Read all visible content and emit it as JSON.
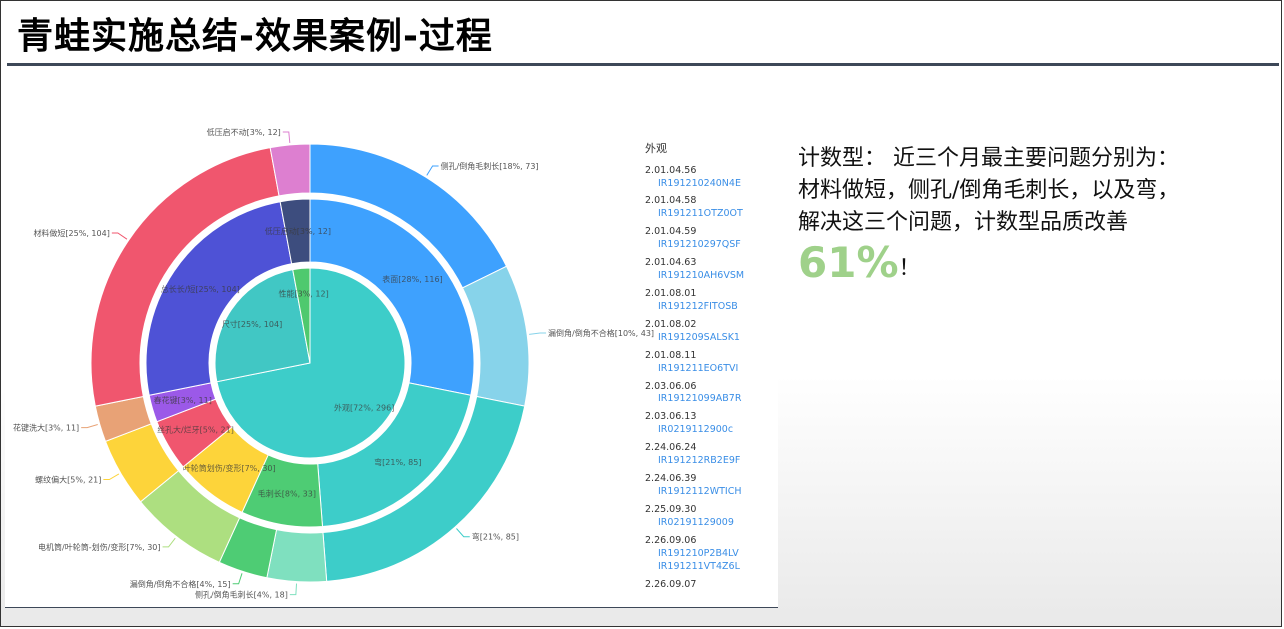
{
  "title": "青蛙实施总结-效果案例-过程",
  "description": {
    "line1": "计数型： 近三个月最主要问题分别为：",
    "line2": "材料做短，侧孔/倒角毛刺长，以及弯，",
    "line3": "解决这三个问题，计数型品质改善",
    "highlight": "61%",
    "suffix": "！"
  },
  "legend": {
    "heading": "外观",
    "items": [
      {
        "code": "2.01.04.56",
        "ids": [
          "IR191210240N4E"
        ]
      },
      {
        "code": "2.01.04.58",
        "ids": [
          "IR191211OTZ0OT"
        ]
      },
      {
        "code": "2.01.04.59",
        "ids": [
          "IR191210297QSF"
        ]
      },
      {
        "code": "2.01.04.63",
        "ids": [
          "IR191210AH6VSM"
        ]
      },
      {
        "code": "2.01.08.01",
        "ids": [
          "IR191212FITOSB"
        ]
      },
      {
        "code": "2.01.08.02",
        "ids": [
          "IR191209SALSK1"
        ]
      },
      {
        "code": "2.01.08.11",
        "ids": [
          "IR191211EO6TVI"
        ]
      },
      {
        "code": "2.03.06.06",
        "ids": [
          "IR19121099AB7R"
        ]
      },
      {
        "code": "2.03.06.13",
        "ids": [
          "IR0219112900c"
        ]
      },
      {
        "code": "2.24.06.24",
        "ids": [
          "IR191212RB2E9F"
        ]
      },
      {
        "code": "2.24.06.39",
        "ids": [
          "IR1912112WTICH"
        ]
      },
      {
        "code": "2.25.09.30",
        "ids": [
          "IR02191129009"
        ]
      },
      {
        "code": "2.26.09.06",
        "ids": [
          "IR191210P2B4LV",
          "IR191211VT4Z6L"
        ]
      },
      {
        "code": "2.26.09.07",
        "ids": []
      }
    ]
  },
  "chart_data": {
    "type": "sunburst",
    "title": "",
    "center": {
      "name": "",
      "value": 0
    },
    "inner_ring": [
      {
        "name": "外观",
        "label": "外观[72%, 296]",
        "value": 296,
        "color": "#3dcdc9"
      },
      {
        "name": "尺寸",
        "label": "尺寸[25%, 104]",
        "value": 104,
        "color": "#41c7c4"
      },
      {
        "name": "性能",
        "label": "性能[3%, 12]",
        "value": 12,
        "color": "#4fc96e"
      }
    ],
    "middle_ring": [
      {
        "name": "表面",
        "label": "表面[28%, 116]",
        "value": 116,
        "color": "#3ea1fe",
        "parent": "外观"
      },
      {
        "name": "弯",
        "label": "弯[21%, 85]",
        "value": 85,
        "color": "#3dcdc9",
        "parent": "外观"
      },
      {
        "name": "毛刺长",
        "label": "毛刺长[8%, 33]",
        "value": 33,
        "color": "#4ecc74",
        "parent": "外观"
      },
      {
        "name": "叶轮筒划伤/变形",
        "label": "叶轮筒划伤/变形[7%, 30]",
        "value": 30,
        "color": "#fdd43a",
        "parent": "外观"
      },
      {
        "name": "丝孔大/烂牙",
        "label": "丝孔大/烂牙[5%, 21]",
        "value": 21,
        "color": "#f0566e",
        "parent": "外观"
      },
      {
        "name": "春花键",
        "label": "春花键[3%, 11]",
        "value": 11,
        "color": "#9b59e8",
        "parent": "外观"
      },
      {
        "name": "总长长/短",
        "label": "总长长/短[25%, 104]",
        "value": 104,
        "color": "#4e52d6",
        "parent": "尺寸"
      },
      {
        "name": "低压启动",
        "label": "低压启动[3%, 12]",
        "value": 12,
        "color": "#3d4d7e",
        "parent": "性能"
      }
    ],
    "outer_ring": [
      {
        "name": "侧孔/倒角毛刺长",
        "label": "侧孔/倒角毛刺长[18%, 73]",
        "value": 73,
        "color": "#3ea1fe"
      },
      {
        "name": "漏倒角/倒角不合格",
        "label": "漏倒角/倒角不合格[10%, 43]",
        "value": 43,
        "color": "#87d3ea"
      },
      {
        "name": "弯",
        "label": "弯[21%, 85]",
        "value": 85,
        "color": "#3dcdc9"
      },
      {
        "name": "侧孔/倒角毛刺长",
        "label": "侧孔/倒角毛刺长[4%, 18]",
        "value": 18,
        "color": "#7fe0bf"
      },
      {
        "name": "漏倒角/倒角不合格",
        "label": "漏倒角/倒角不合格[4%, 15]",
        "value": 15,
        "color": "#4ecc74"
      },
      {
        "name": "电机筒/叶轮筒-划伤/变形",
        "label": "电机筒/叶轮筒-划伤/变形[7%, 30]",
        "value": 30,
        "color": "#addf80"
      },
      {
        "name": "螺纹偏大",
        "label": "螺纹偏大[5%, 21]",
        "value": 21,
        "color": "#fdd43a"
      },
      {
        "name": "花键洗大",
        "label": "花键洗大[3%, 11]",
        "value": 11,
        "color": "#e8a276"
      },
      {
        "name": "材料做短",
        "label": "材料做短[25%, 104]",
        "value": 104,
        "color": "#f0566e"
      },
      {
        "name": "低压启不动",
        "label": "低压启不动[3%, 12]",
        "value": 12,
        "color": "#dd7fd0"
      }
    ]
  }
}
